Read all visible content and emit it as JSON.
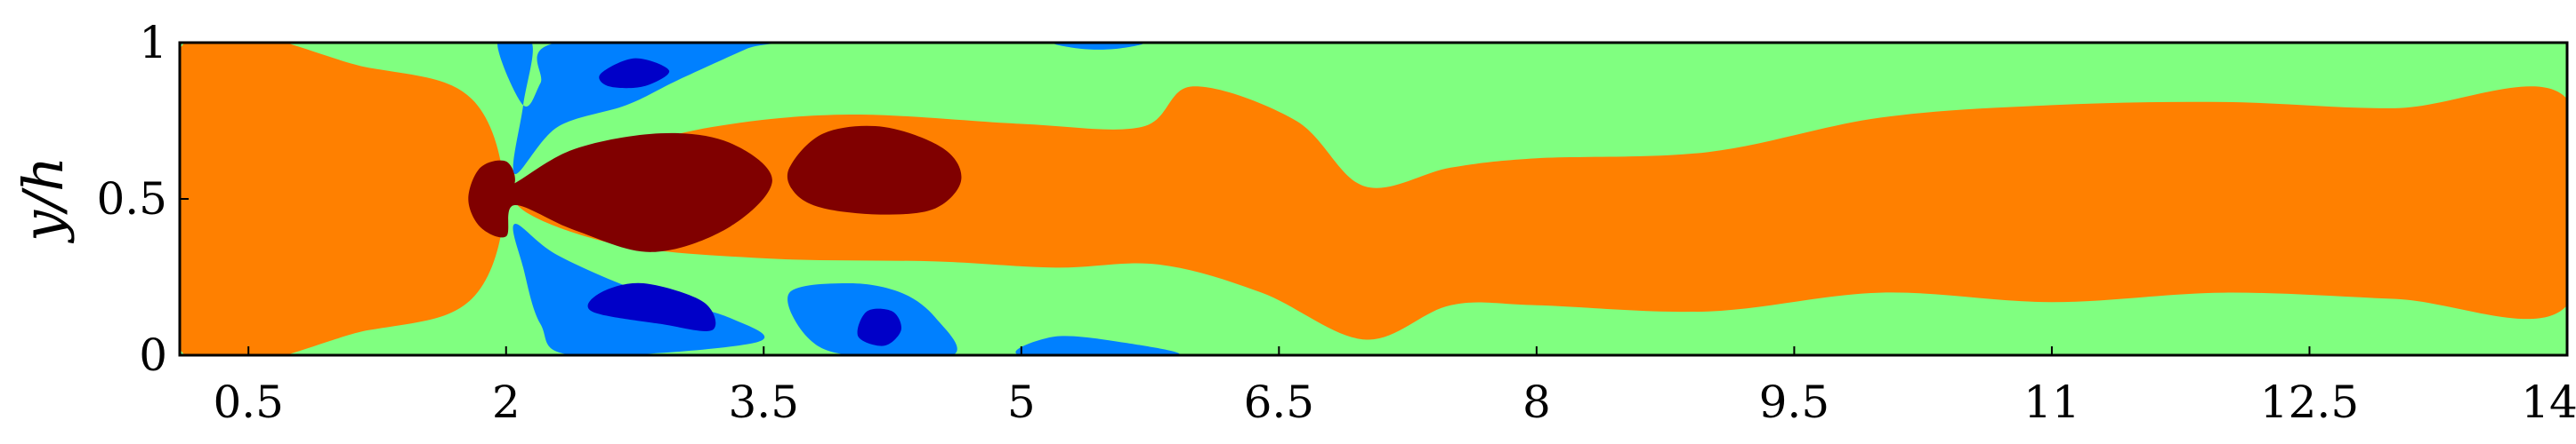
{
  "chart_data": {
    "type": "heatmap",
    "title": "",
    "xlabel": "",
    "ylabel": "y/h",
    "xlim": [
      0.1,
      14
    ],
    "ylim": [
      0,
      1
    ],
    "x_ticks": [
      0.5,
      2,
      3.5,
      5,
      6.5,
      8,
      9.5,
      11,
      12.5,
      14
    ],
    "x_tick_labels": [
      "0.5",
      "2",
      "3.5",
      "5",
      "6.5",
      "8",
      "9.5",
      "11",
      "12.5",
      "14"
    ],
    "y_ticks": [
      0,
      0.5,
      1
    ],
    "y_tick_labels": [
      "0",
      "0.5",
      "1"
    ],
    "grid": false,
    "colormap": "jet",
    "levels": {
      "background": "#80ff80",
      "core": "#ff8000",
      "max": "#800000",
      "negative": "#0080ff",
      "min": "#0000c8"
    },
    "regions": [
      {
        "level": "core",
        "polygon": [
          [
            0.1,
            0.02
          ],
          [
            1.2,
            0.08
          ],
          [
            1.8,
            0.18
          ],
          [
            1.99,
            0.5
          ],
          [
            1.8,
            0.82
          ],
          [
            1.2,
            0.92
          ],
          [
            0.1,
            0.98
          ]
        ]
      },
      {
        "level": "core",
        "polygon": [
          [
            2.05,
            0.5
          ],
          [
            2.6,
            0.36
          ],
          [
            3.5,
            0.31
          ],
          [
            4.5,
            0.3
          ],
          [
            5.2,
            0.28
          ],
          [
            5.8,
            0.29
          ],
          [
            6.4,
            0.2
          ],
          [
            7.0,
            0.05
          ],
          [
            7.5,
            0.16
          ],
          [
            8.0,
            0.16
          ],
          [
            9.0,
            0.14
          ],
          [
            10.0,
            0.2
          ],
          [
            11.0,
            0.17
          ],
          [
            12.0,
            0.2
          ],
          [
            13.0,
            0.18
          ],
          [
            14.0,
            0.16
          ],
          [
            14.0,
            0.82
          ],
          [
            13.0,
            0.79
          ],
          [
            12.0,
            0.81
          ],
          [
            11.0,
            0.8
          ],
          [
            10.0,
            0.76
          ],
          [
            9.0,
            0.65
          ],
          [
            8.0,
            0.63
          ],
          [
            7.5,
            0.6
          ],
          [
            7.0,
            0.54
          ],
          [
            6.6,
            0.75
          ],
          [
            6.0,
            0.86
          ],
          [
            5.7,
            0.73
          ],
          [
            5.0,
            0.74
          ],
          [
            4.0,
            0.77
          ],
          [
            3.2,
            0.73
          ],
          [
            2.6,
            0.64
          ]
        ]
      },
      {
        "level": "max",
        "polygon": [
          [
            1.93,
            0.48
          ],
          [
            1.96,
            0.53
          ],
          [
            2.05,
            0.55
          ],
          [
            2.4,
            0.66
          ],
          [
            2.9,
            0.71
          ],
          [
            3.3,
            0.68
          ],
          [
            3.55,
            0.56
          ],
          [
            3.3,
            0.41
          ],
          [
            2.85,
            0.33
          ],
          [
            2.4,
            0.4
          ],
          [
            2.05,
            0.48
          ],
          [
            2.0,
            0.38
          ],
          [
            1.85,
            0.41
          ],
          [
            1.78,
            0.5
          ],
          [
            1.85,
            0.6
          ],
          [
            2.0,
            0.62
          ],
          [
            2.05,
            0.55
          ]
        ]
      },
      {
        "level": "max",
        "polygon": [
          [
            3.65,
            0.6
          ],
          [
            3.85,
            0.71
          ],
          [
            4.2,
            0.73
          ],
          [
            4.55,
            0.66
          ],
          [
            4.65,
            0.56
          ],
          [
            4.5,
            0.47
          ],
          [
            4.2,
            0.45
          ],
          [
            3.85,
            0.47
          ],
          [
            3.68,
            0.52
          ]
        ]
      },
      {
        "level": "negative",
        "polygon": [
          [
            1.95,
            1.0
          ],
          [
            2.15,
            1.0
          ],
          [
            2.1,
            0.8
          ],
          [
            2.05,
            0.58
          ],
          [
            2.3,
            0.73
          ],
          [
            2.7,
            0.8
          ],
          [
            3.0,
            0.88
          ],
          [
            3.4,
            0.98
          ],
          [
            3.5,
            1.0
          ],
          [
            2.3,
            1.0
          ],
          [
            2.2,
            0.87
          ],
          [
            2.1,
            0.8
          ]
        ]
      },
      {
        "level": "negative",
        "polygon": [
          [
            2.05,
            0.42
          ],
          [
            2.3,
            0.32
          ],
          [
            2.8,
            0.2
          ],
          [
            3.3,
            0.12
          ],
          [
            3.45,
            0.04
          ],
          [
            2.4,
            0.0
          ],
          [
            2.2,
            0.1
          ],
          [
            2.1,
            0.28
          ]
        ]
      },
      {
        "level": "negative",
        "polygon": [
          [
            3.65,
            0.2
          ],
          [
            3.75,
            0.06
          ],
          [
            4.0,
            0.0
          ],
          [
            4.6,
            0.0
          ],
          [
            4.5,
            0.12
          ],
          [
            4.3,
            0.2
          ],
          [
            4.0,
            0.23
          ]
        ]
      },
      {
        "level": "negative",
        "polygon": [
          [
            5.0,
            0.0
          ],
          [
            5.9,
            0.0
          ],
          [
            5.6,
            0.04
          ],
          [
            5.2,
            0.06
          ]
        ]
      },
      {
        "level": "negative",
        "polygon": [
          [
            5.2,
            1.0
          ],
          [
            5.7,
            1.0
          ],
          [
            5.55,
            0.98
          ],
          [
            5.35,
            0.98
          ]
        ]
      },
      {
        "level": "min",
        "polygon": [
          [
            2.55,
            0.9
          ],
          [
            2.75,
            0.95
          ],
          [
            2.95,
            0.91
          ],
          [
            2.8,
            0.86
          ],
          [
            2.6,
            0.86
          ]
        ]
      },
      {
        "level": "min",
        "polygon": [
          [
            2.5,
            0.14
          ],
          [
            2.9,
            0.1
          ],
          [
            3.2,
            0.08
          ],
          [
            3.15,
            0.17
          ],
          [
            2.8,
            0.23
          ],
          [
            2.55,
            0.2
          ]
        ]
      },
      {
        "level": "min",
        "polygon": [
          [
            4.05,
            0.06
          ],
          [
            4.2,
            0.03
          ],
          [
            4.3,
            0.08
          ],
          [
            4.25,
            0.14
          ],
          [
            4.1,
            0.14
          ]
        ]
      }
    ]
  }
}
